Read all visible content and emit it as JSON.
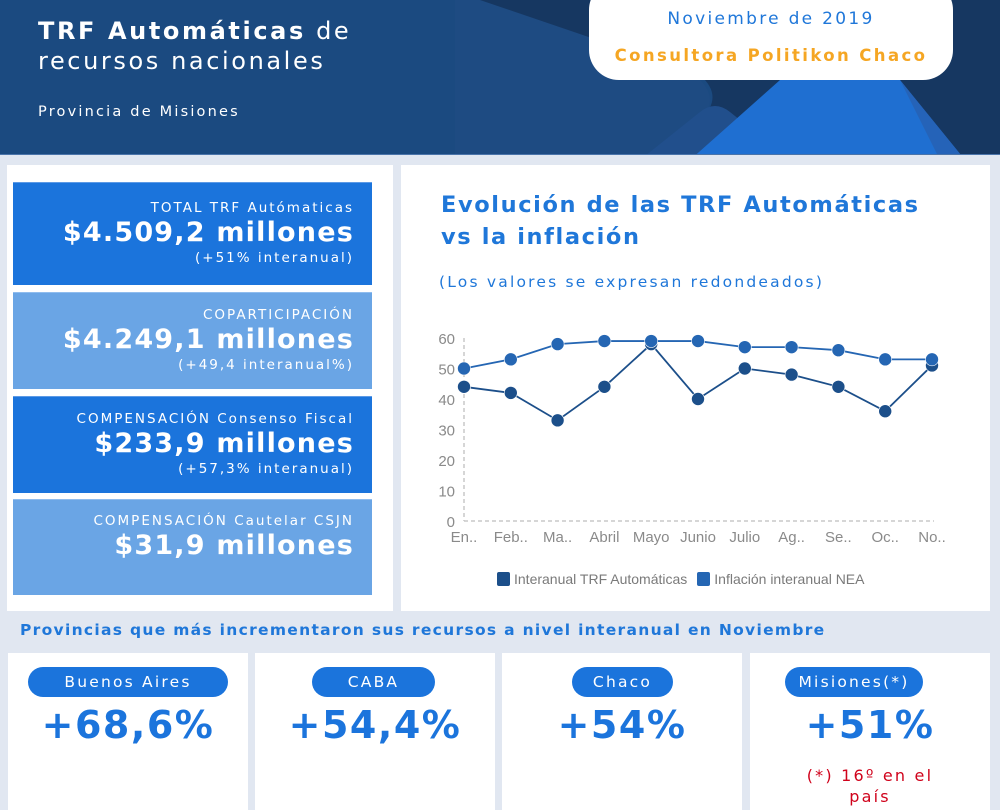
{
  "header": {
    "title_bold": "TRF Automáticas",
    "title_rest": " de",
    "title_line2": "recursos nacionales",
    "province": "Provincia de Misiones",
    "date": "Noviembre de 2019",
    "organization": "Consultora Politikon Chaco"
  },
  "stats": [
    {
      "label": "TOTAL TRF Autómaticas",
      "amount": "$4.509,2 millones",
      "change": "(+51% interanual)"
    },
    {
      "label": "COPARTICIPACIÓN",
      "amount": "$4.249,1 millones",
      "change": "(+49,4 interanual%)"
    },
    {
      "label": "COMPENSACIÓN Consenso Fiscal",
      "amount": "$233,9 millones",
      "change": "(+57,3% interanual)"
    },
    {
      "label": "COMPENSACIÓN Cautelar CSJN",
      "amount": "$31,9 millones",
      "change": ""
    }
  ],
  "chart_panel": {
    "title_line1": "Evolución de las TRF Automáticas",
    "title_line2": "vs la inflación",
    "subtitle": "(Los valores se expresan redondeados)"
  },
  "chart_data": {
    "type": "line",
    "title": "Evolución de las TRF Automáticas vs la inflación",
    "subtitle": "(Los valores se expresan redondeados)",
    "categories": [
      "En..",
      "Feb..",
      "Ma..",
      "Abril",
      "Mayo",
      "Junio",
      "Julio",
      "Ag..",
      "Se..",
      "Oc..",
      "No.."
    ],
    "series": [
      {
        "name": "Interanual TRF Automáticas",
        "color": "#1c4f8a",
        "values": [
          44,
          42,
          33,
          44,
          58,
          40,
          50,
          48,
          44,
          36,
          51
        ]
      },
      {
        "name": "Inflación interanual NEA",
        "color": "#2566b3",
        "values": [
          50,
          53,
          58,
          59,
          59,
          59,
          57,
          57,
          56,
          53,
          53
        ]
      }
    ],
    "xlabel": "",
    "ylabel": "",
    "ylim": [
      0,
      60
    ],
    "yticks": [
      0,
      10,
      20,
      30,
      40,
      50,
      60
    ],
    "grid": false,
    "legend": "bottom"
  },
  "provinces_section": {
    "title": "Provincias que más incrementaron sus recursos a nivel interanual en Noviembre",
    "items": [
      {
        "name": "Buenos Aires",
        "value": "+68,6%",
        "note": ""
      },
      {
        "name": "CABA",
        "value": "+54,4%",
        "note": ""
      },
      {
        "name": "Chaco",
        "value": "+54%",
        "note": ""
      },
      {
        "name": "Misiones(*)",
        "value": "+51%",
        "note": "(*) 16º en el país"
      }
    ]
  },
  "colors": {
    "header_bg": "#1b4a80",
    "accent_blue": "#1b74dc",
    "light_blue": "#6aa5e5",
    "orange": "#f5a623",
    "note_red": "#d0021b",
    "page_bg": "#e1e7f1"
  }
}
